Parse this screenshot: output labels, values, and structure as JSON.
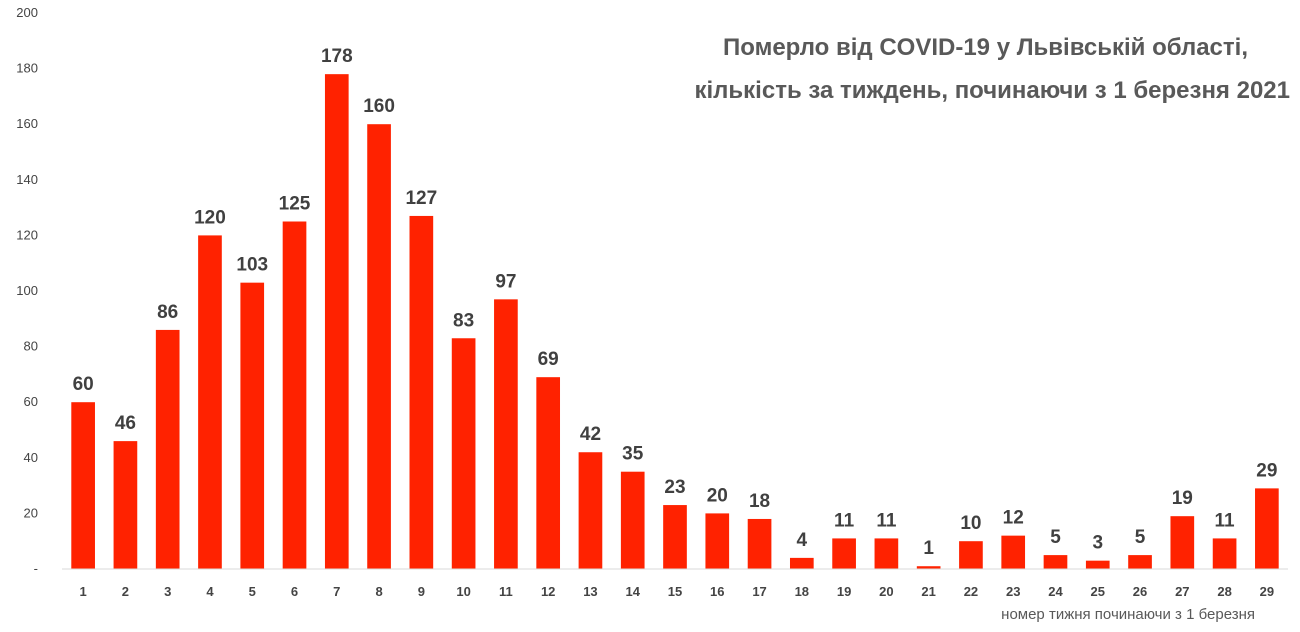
{
  "chart_data": {
    "type": "bar",
    "title_lines": [
      "Померло від COVID-19 у Львівській області,",
      "кількість за тиждень, починаючи з 1 березня 2021"
    ],
    "xlabel": "номер тижня починаючи з 1 березня",
    "ylabel": "",
    "ylim": [
      0,
      200
    ],
    "y_ticks": [
      0,
      20,
      40,
      60,
      80,
      100,
      120,
      140,
      160,
      180,
      200
    ],
    "y_zero_label": "-",
    "grid": false,
    "legend": "none",
    "bar_color": "#FF2200",
    "categories": [
      "1",
      "2",
      "3",
      "4",
      "5",
      "6",
      "7",
      "8",
      "9",
      "10",
      "11",
      "12",
      "13",
      "14",
      "15",
      "16",
      "17",
      "18",
      "19",
      "20",
      "21",
      "22",
      "23",
      "24",
      "25",
      "26",
      "27",
      "28",
      "29"
    ],
    "values": [
      60,
      46,
      86,
      120,
      103,
      125,
      178,
      160,
      127,
      83,
      97,
      69,
      42,
      35,
      23,
      20,
      18,
      4,
      11,
      11,
      1,
      10,
      12,
      5,
      3,
      5,
      19,
      11,
      29
    ]
  }
}
